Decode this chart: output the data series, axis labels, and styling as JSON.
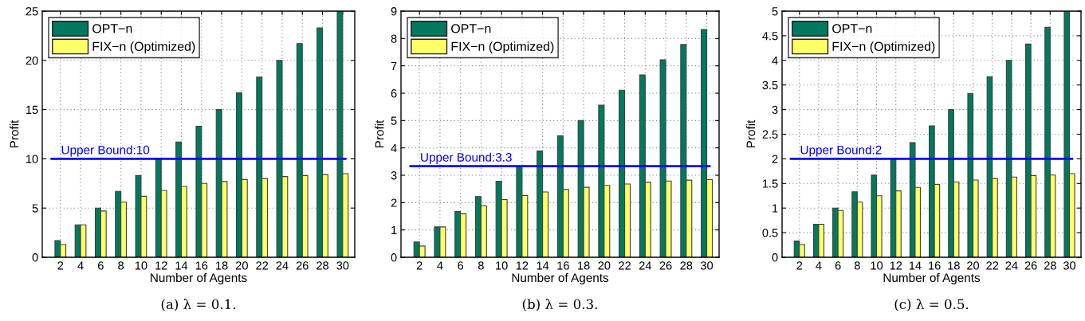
{
  "chart_data": [
    {
      "type": "bar",
      "xlabel": "Number of Agents",
      "ylabel": "Profit",
      "annotations": [
        "(a) λ = 0.1."
      ],
      "categories": [
        "2",
        "4",
        "6",
        "8",
        "10",
        "12",
        "14",
        "16",
        "18",
        "20",
        "22",
        "24",
        "26",
        "28",
        "30"
      ],
      "series": [
        {
          "name": "OPT−n",
          "color": "#007a5e",
          "values": [
            1.7,
            3.3,
            5,
            6.7,
            8.3,
            10,
            11.7,
            13.3,
            15,
            16.7,
            18.3,
            20,
            21.7,
            23.3,
            25
          ]
        },
        {
          "name": "FIX−n (Optimized)",
          "color": "#ffff66",
          "values": [
            1.3,
            3.3,
            4.7,
            5.6,
            6.2,
            6.8,
            7.2,
            7.5,
            7.7,
            7.9,
            8,
            8.2,
            8.3,
            8.4,
            8.5
          ]
        }
      ],
      "ylim": [
        0,
        25
      ],
      "yticks": [
        0,
        5,
        10,
        15,
        20,
        25
      ],
      "grid": true,
      "legend": "top left",
      "ref_lines": [
        {
          "axis": "y",
          "value": 10,
          "label": "Upper Bound:10",
          "color": "#0000ff"
        }
      ]
    },
    {
      "type": "bar",
      "xlabel": "Number of Agents",
      "ylabel": "Profit",
      "annotations": [
        "(b) λ = 0.3."
      ],
      "categories": [
        "2",
        "4",
        "6",
        "8",
        "10",
        "12",
        "14",
        "16",
        "18",
        "20",
        "22",
        "24",
        "26",
        "28",
        "30"
      ],
      "series": [
        {
          "name": "OPT−n",
          "color": "#007a5e",
          "values": [
            0.56,
            1.11,
            1.67,
            2.22,
            2.78,
            3.33,
            3.89,
            4.44,
            5,
            5.56,
            6.11,
            6.67,
            7.22,
            7.78,
            8.33
          ]
        },
        {
          "name": "FIX−n (Optimized)",
          "color": "#ffff66",
          "values": [
            0.41,
            1.11,
            1.59,
            1.88,
            2.11,
            2.26,
            2.39,
            2.48,
            2.56,
            2.63,
            2.68,
            2.74,
            2.79,
            2.82,
            2.84
          ]
        }
      ],
      "ylim": [
        0,
        9
      ],
      "yticks": [
        0,
        1,
        2,
        3,
        4,
        5,
        6,
        7,
        8,
        9
      ],
      "grid": true,
      "legend": "top left",
      "ref_lines": [
        {
          "axis": "y",
          "value": 3.33,
          "label": "Upper Bound:3.3",
          "color": "#0000ff"
        }
      ]
    },
    {
      "type": "bar",
      "xlabel": "Number of Agents",
      "ylabel": "Profit",
      "annotations": [
        "(c) λ = 0.5."
      ],
      "categories": [
        "2",
        "4",
        "6",
        "8",
        "10",
        "12",
        "14",
        "16",
        "18",
        "20",
        "22",
        "24",
        "26",
        "28",
        "30"
      ],
      "series": [
        {
          "name": "OPT−n",
          "color": "#007a5e",
          "values": [
            0.33,
            0.67,
            1,
            1.33,
            1.67,
            2,
            2.33,
            2.67,
            3,
            3.33,
            3.67,
            4,
            4.33,
            4.67,
            5
          ]
        },
        {
          "name": "FIX−n (Optimized)",
          "color": "#ffff66",
          "values": [
            0.26,
            0.67,
            0.95,
            1.12,
            1.25,
            1.35,
            1.42,
            1.48,
            1.53,
            1.57,
            1.6,
            1.63,
            1.66,
            1.67,
            1.7
          ]
        }
      ],
      "ylim": [
        0,
        5
      ],
      "yticks": [
        0,
        0.5,
        1,
        1.5,
        2,
        2.5,
        3,
        3.5,
        4,
        4.5,
        5
      ],
      "grid": true,
      "legend": "top left",
      "ref_lines": [
        {
          "axis": "y",
          "value": 2,
          "label": "Upper Bound:2",
          "color": "#0000ff"
        }
      ]
    }
  ]
}
